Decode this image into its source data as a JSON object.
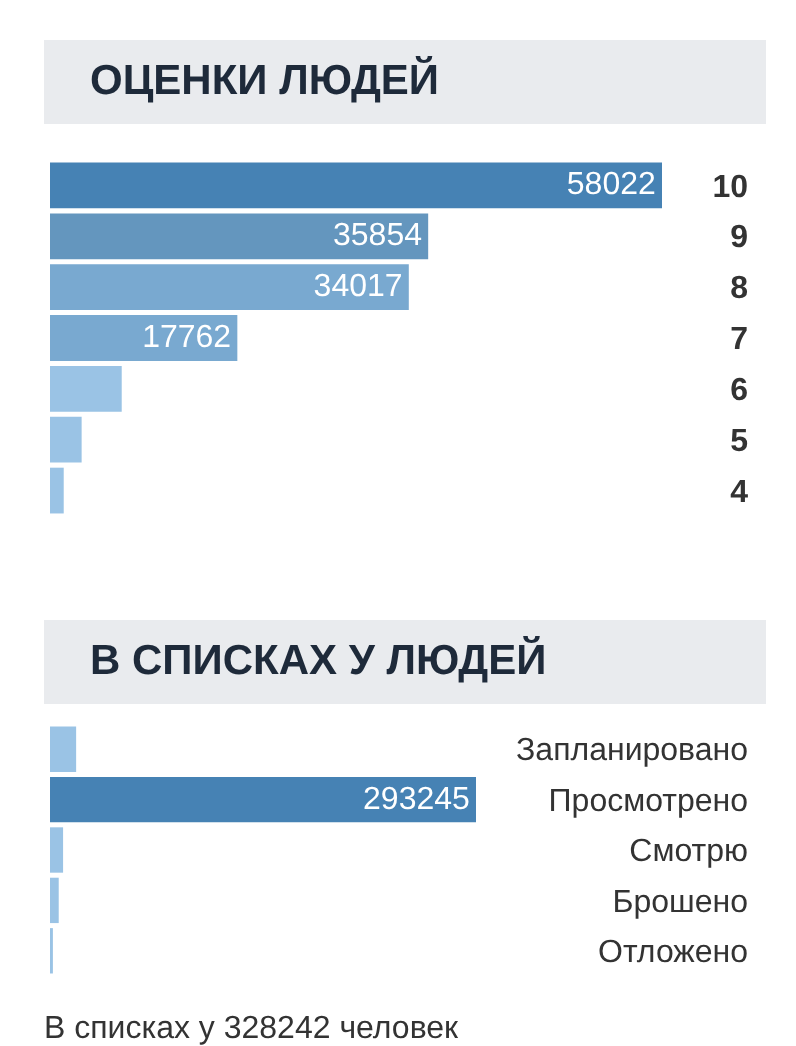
{
  "chart_data": [
    {
      "type": "bar",
      "orientation": "horizontal",
      "title": "ОЦЕНКИ ЛЮДЕЙ",
      "categories": [
        "10",
        "9",
        "8",
        "7",
        "6",
        "5",
        "4"
      ],
      "values": [
        58022,
        35854,
        34017,
        17762,
        6800,
        3000,
        1300
      ],
      "colors": [
        "#4682b4",
        "#6496be",
        "#79a9d0",
        "#79a9d0",
        "#9ac3e5",
        "#9ac3e5",
        "#9ac3e5"
      ],
      "value_labels": [
        "58022",
        "35854",
        "34017",
        "17762",
        null,
        null,
        null
      ],
      "grid": false,
      "legend": false,
      "tick_labels": "y"
    },
    {
      "type": "bar",
      "orientation": "horizontal",
      "title": "В СПИСКАХ У ЛЮДЕЙ",
      "categories": [
        "Запланировано",
        "Просмотрено",
        "Смотрю",
        "Брошено",
        "Отложено"
      ],
      "values": [
        18000,
        293245,
        9000,
        6000,
        2000
      ],
      "colors": [
        "#9ac3e5",
        "#4682b4",
        "#9ac3e5",
        "#9ac3e5",
        "#9ac3e5"
      ],
      "value_labels": [
        null,
        "293245",
        null,
        null,
        null
      ],
      "grid": false,
      "legend": false,
      "tick_labels": "y",
      "annotations": [
        "В списках у 328242 человек"
      ]
    }
  ]
}
